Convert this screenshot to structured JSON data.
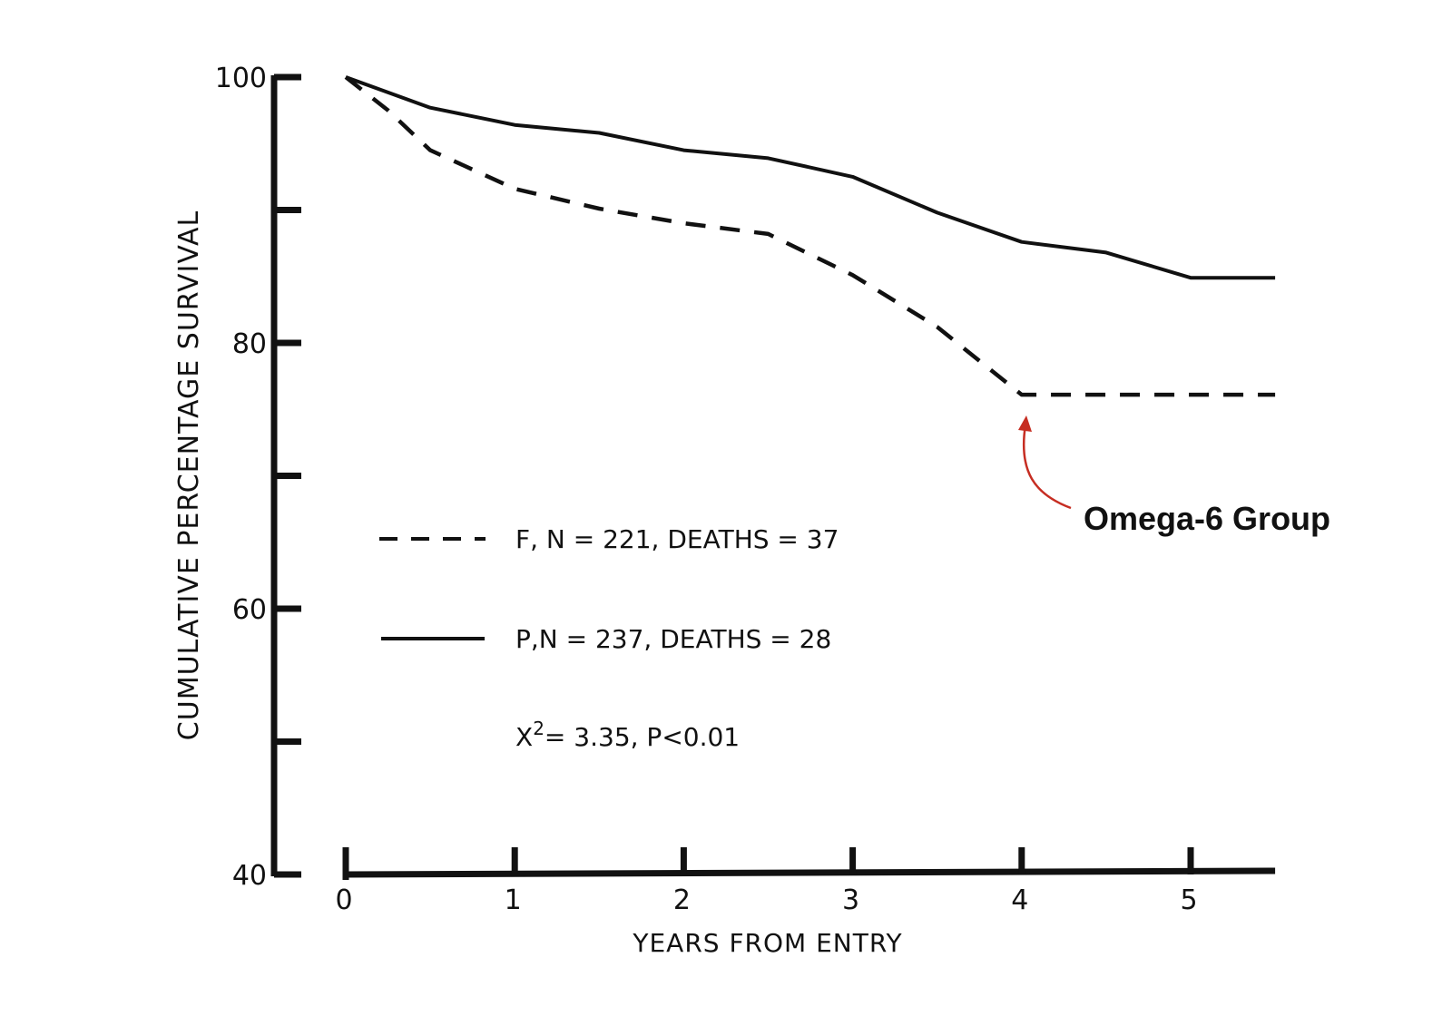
{
  "chart_data": {
    "type": "line",
    "title": "",
    "xlabel": "YEARS FROM ENTRY",
    "ylabel": "CUMULATIVE PERCENTAGE SURVIVAL",
    "xlim": [
      0,
      5.5
    ],
    "ylim": [
      40,
      100
    ],
    "x_ticks": [
      0,
      1,
      2,
      3,
      4,
      5
    ],
    "x_tick_labels": [
      "0",
      "1",
      "2",
      "3",
      "4",
      "5"
    ],
    "y_ticks": [
      40,
      50,
      60,
      70,
      80,
      90,
      100
    ],
    "y_tick_labels": [
      {
        "value": 40,
        "label": "40"
      },
      {
        "value": 60,
        "label": "60"
      },
      {
        "value": 80,
        "label": "80"
      },
      {
        "value": 100,
        "label": "100"
      }
    ],
    "grid": false,
    "series": [
      {
        "name": "F",
        "style": "dashed",
        "legend_label": "F, N = 221, DEATHS = 37",
        "x": [
          0,
          0.25,
          0.5,
          1,
          1.5,
          2,
          2.5,
          3,
          3.5,
          4,
          4.5,
          5,
          5.5
        ],
        "y": [
          100,
          97.5,
          94.5,
          91.6,
          90.1,
          89.0,
          88.2,
          85.1,
          81.2,
          76.1,
          76.1,
          76.1,
          76.1
        ]
      },
      {
        "name": "P",
        "style": "solid",
        "legend_label": "P,N = 237, DEATHS = 28",
        "x": [
          0,
          0.5,
          1,
          1.5,
          2,
          2.5,
          3,
          3.5,
          4,
          4.5,
          5,
          5.5
        ],
        "y": [
          100,
          97.7,
          96.4,
          95.8,
          94.5,
          93.9,
          92.5,
          89.8,
          87.6,
          86.8,
          84.9,
          84.9
        ]
      }
    ],
    "legend_position": "center-left",
    "stat_text": {
      "chi_symbol": "X",
      "chi_exponent": "2",
      "rest": "= 3.35,  P<0.01"
    },
    "annotation": {
      "text": "Omega-6 Group",
      "color": "#c62d22",
      "points_to": {
        "x": 4,
        "y": 76.1
      }
    }
  }
}
